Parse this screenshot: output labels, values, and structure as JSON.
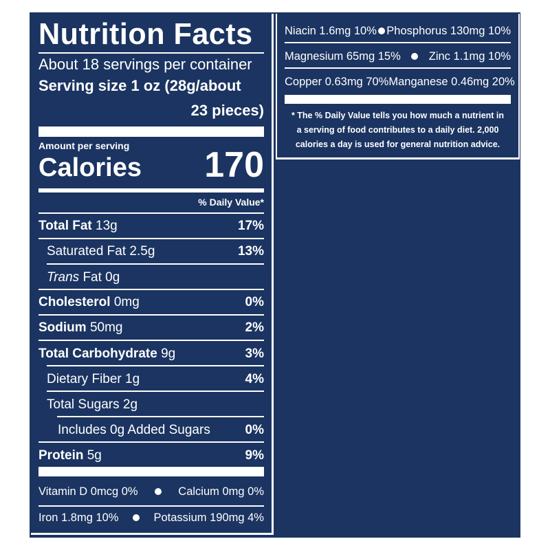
{
  "colors": {
    "background": "#1b3461",
    "text": "#ffffff"
  },
  "title": "Nutrition Facts",
  "servings_per_container": "About 18 servings per container",
  "serving_size_line1": "Serving size 1 oz (28g/about",
  "serving_size_line2": "23 pieces)",
  "amount_per_serving": "Amount per serving",
  "calories_label": "Calories",
  "calories_value": "170",
  "daily_value_header": "% Daily Value*",
  "nutrients": [
    {
      "name": "Total Fat",
      "amount": "13g",
      "dv": "17%"
    },
    {
      "name": "Saturated Fat",
      "amount": "2.5g",
      "dv": "13%"
    },
    {
      "name": "Trans",
      "name_suffix": "Fat 0g",
      "dv": ""
    },
    {
      "name": "Cholesterol",
      "amount": "0mg",
      "dv": "0%"
    },
    {
      "name": "Sodium",
      "amount": "50mg",
      "dv": "2%"
    },
    {
      "name": "Total Carbohydrate",
      "amount": "9g",
      "dv": "3%"
    },
    {
      "name": "Dietary Fiber",
      "amount": "1g",
      "dv": "4%"
    },
    {
      "name": "Total Sugars",
      "amount": "2g",
      "dv": ""
    },
    {
      "name": "Includes 0g Added Sugars",
      "amount": "",
      "dv": "0%"
    },
    {
      "name": "Protein",
      "amount": "5g",
      "dv": "9%"
    }
  ],
  "minerals_left": [
    {
      "a": "Vitamin D 0mcg 0%",
      "b": "Calcium 0mg 0%"
    },
    {
      "a": "Iron 1.8mg 10%",
      "b": "Potassium 190mg 4%"
    }
  ],
  "minerals_right": [
    {
      "a": "Niacin 1.6mg 10%",
      "b": "Phosphorus 130mg 10%"
    },
    {
      "a": "Magnesium 65mg 15%",
      "b": "Zinc 1.1mg 10%"
    },
    {
      "a": "Copper 0.63mg 70%",
      "b": "Manganese 0.46mg 20%"
    }
  ],
  "footnote_line1": "* The % Daily Value tells you how much a nutrient in",
  "footnote_line2": "a serving of food contributes to a daily diet. 2,000",
  "footnote_line3": "calories a day is used for general nutrition advice."
}
